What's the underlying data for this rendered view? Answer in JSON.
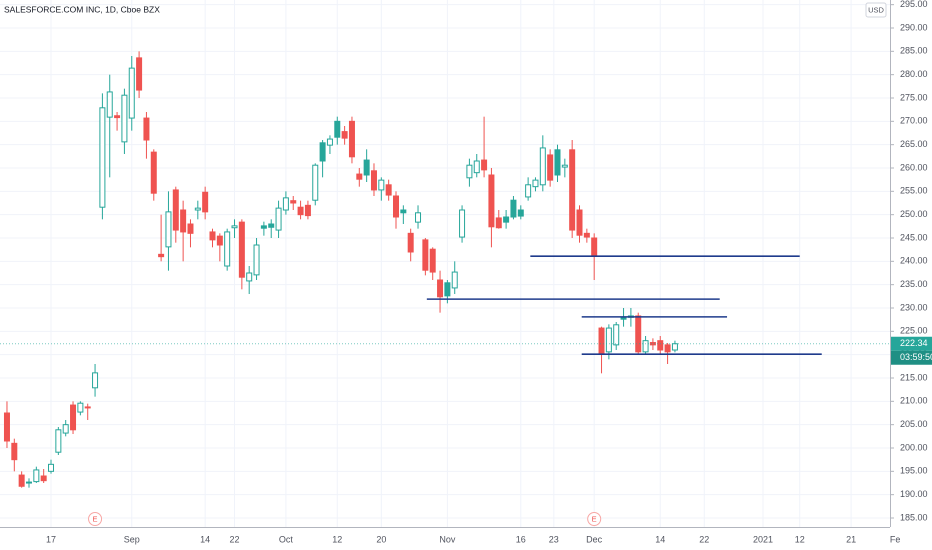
{
  "chart_data": {
    "type": "candlestick",
    "title": "SALESFORCE.COM INC, 1D, Cboe BZX",
    "currency": "USD",
    "countdown": "03:59:50",
    "up_color": "#26a69a",
    "down_color": "#ef5350",
    "level_color": "#1f3b8c",
    "open": [
      207.5,
      201,
      194.2,
      192.5,
      192.8,
      194,
      195,
      199.1,
      203.2,
      209.2,
      207.7,
      208.8,
      212.9,
      251.6,
      270.9,
      271.2,
      265.6,
      270.7,
      283.6,
      270.7,
      263.4,
      241.5,
      243.1,
      255.3,
      251,
      248,
      251,
      254.8,
      246.3,
      245.4,
      239,
      247.2,
      248.4,
      235.8,
      237.1,
      247.6,
      248,
      246.7,
      251,
      253,
      251.6,
      252,
      253.1,
      265.4,
      264.9,
      270,
      267.8,
      270,
      258.7,
      261.7,
      259.4,
      255.3,
      256.4,
      254,
      251,
      246,
      248.4,
      244.6,
      242.6,
      236,
      235.4,
      234.3,
      245.2,
      257.9,
      259,
      261.7,
      258.5,
      249.3,
      249.5,
      253.1,
      251,
      253.8,
      256,
      256.4,
      262.8,
      263.9,
      260.2,
      263.9,
      251,
      246,
      245,
      225.7,
      220.6,
      222.1,
      227.9,
      228,
      228.3,
      220.6,
      222.6,
      223,
      222.1,
      221
    ],
    "high": [
      210,
      202,
      195,
      193.5,
      196,
      195.5,
      197.5,
      204.5,
      206,
      210,
      210,
      209.5,
      218,
      276,
      280,
      272,
      277,
      284,
      285,
      272,
      264,
      250,
      255,
      256,
      253,
      249,
      253,
      256,
      247,
      246,
      247,
      249,
      249,
      239,
      245,
      248.5,
      249,
      253,
      255,
      254,
      253,
      253,
      261,
      266,
      267,
      271,
      269,
      271,
      260,
      264,
      261,
      258,
      257.5,
      255,
      252,
      247,
      252,
      245,
      243,
      238,
      236,
      240,
      252,
      262,
      263,
      271,
      260,
      251,
      251,
      254,
      252,
      258,
      258,
      267,
      264,
      265,
      262,
      266,
      252,
      247,
      246,
      226,
      226.5,
      227,
      230,
      230,
      229,
      224,
      223.5,
      224,
      222.5,
      223
    ],
    "low": [
      200,
      195,
      191.5,
      191.5,
      192.5,
      192.5,
      194.5,
      198.5,
      202.5,
      203,
      207,
      206,
      211,
      249,
      258,
      268,
      263,
      268,
      275,
      262,
      253,
      240,
      238,
      244,
      240,
      243,
      249,
      249,
      243,
      240,
      238,
      245,
      234,
      233,
      236,
      245.5,
      245,
      245,
      250,
      251,
      249,
      249,
      252,
      258,
      263,
      265,
      265,
      261,
      256,
      257,
      254,
      253,
      253,
      247,
      248,
      240,
      247,
      237,
      236,
      229,
      231,
      233,
      244,
      256,
      258,
      258,
      243,
      247,
      247,
      249,
      249,
      253,
      255,
      255,
      256,
      257,
      258,
      245,
      244,
      244,
      236,
      216,
      219,
      221,
      226,
      226,
      220,
      220,
      221,
      220,
      218,
      220.5
    ],
    "close": [
      201.5,
      197.5,
      191.8,
      192.7,
      195.3,
      193,
      196.5,
      203.9,
      205,
      203.9,
      209.6,
      208.6,
      216.1,
      272.9,
      276.3,
      270.8,
      275.6,
      281.4,
      276.7,
      266,
      254.6,
      241,
      250.6,
      246.7,
      246.3,
      246,
      251.4,
      250.6,
      244.6,
      243.5,
      246.3,
      247.6,
      236.6,
      237.5,
      243.5,
      247.1,
      247.3,
      251.4,
      253.6,
      252.5,
      250,
      249.8,
      260.6,
      261.5,
      266.2,
      266.6,
      266.4,
      262.4,
      257.6,
      258.5,
      255.3,
      257.4,
      254.2,
      249.5,
      250.4,
      242,
      250.4,
      238.1,
      237.7,
      232.4,
      232.6,
      237.7,
      251,
      260.6,
      261.5,
      259.6,
      247.4,
      247.2,
      248.4,
      249.5,
      249.7,
      256.4,
      257.4,
      264.3,
      257.4,
      258.5,
      260.6,
      246.7,
      245.6,
      245.2,
      241.1,
      220.1,
      225.7,
      226.4,
      227.6,
      228.3,
      220.6,
      223,
      222.1,
      221,
      220.6,
      222.34
    ],
    "xlim": [
      -0.95,
      120.3
    ],
    "xticks": [
      {
        "value": 6,
        "label": "17"
      },
      {
        "value": 17,
        "label": "Sep"
      },
      {
        "value": 27,
        "label": "14"
      },
      {
        "value": 31,
        "label": "22"
      },
      {
        "value": 38,
        "label": "Oct"
      },
      {
        "value": 45,
        "label": "12"
      },
      {
        "value": 51,
        "label": "20"
      },
      {
        "value": 60,
        "label": "Nov"
      },
      {
        "value": 70,
        "label": "16"
      },
      {
        "value": 74.5,
        "label": "23"
      },
      {
        "value": 80,
        "label": "Dec"
      },
      {
        "value": 89,
        "label": "14"
      },
      {
        "value": 95,
        "label": "22"
      },
      {
        "value": 103,
        "label": "2021"
      },
      {
        "value": 108,
        "label": "12"
      },
      {
        "value": 115,
        "label": "21"
      },
      {
        "value": 121,
        "label": "Fe"
      }
    ],
    "ylim": [
      183.5,
      296
    ],
    "yticks": [
      {
        "value": 185,
        "label": "185.00"
      },
      {
        "value": 190,
        "label": "190.00"
      },
      {
        "value": 195,
        "label": "195.00"
      },
      {
        "value": 200,
        "label": "200.00"
      },
      {
        "value": 205,
        "label": "205.00"
      },
      {
        "value": 210,
        "label": "210.00"
      },
      {
        "value": 215,
        "label": "215.00"
      },
      {
        "value": 220,
        "label": "220.00"
      },
      {
        "value": 225,
        "label": "225.00"
      },
      {
        "value": 230,
        "label": "230.00"
      },
      {
        "value": 235,
        "label": "235.00"
      },
      {
        "value": 240,
        "label": "240.00"
      },
      {
        "value": 245,
        "label": "245.00"
      },
      {
        "value": 250,
        "label": "250.00"
      },
      {
        "value": 255,
        "label": "255.00"
      },
      {
        "value": 260,
        "label": "260.00"
      },
      {
        "value": 265,
        "label": "265.00"
      },
      {
        "value": 270,
        "label": "270.00"
      },
      {
        "value": 275,
        "label": "275.00"
      },
      {
        "value": 280,
        "label": "280.00"
      },
      {
        "value": 285,
        "label": "285.00"
      },
      {
        "value": 290,
        "label": "290.00"
      },
      {
        "value": 295,
        "label": "295.00"
      }
    ],
    "grid": true,
    "levels": [
      {
        "value": 241.1,
        "x": [
          71.3,
          108
        ]
      },
      {
        "value": 231.9,
        "x": [
          57.2,
          97.1
        ]
      },
      {
        "value": 228.1,
        "x": [
          78.3,
          98.1
        ]
      },
      {
        "value": 220.1,
        "x": [
          78.3,
          111
        ]
      }
    ],
    "events": [
      {
        "x": 12,
        "label": "E"
      },
      {
        "x": 80,
        "label": "E"
      }
    ]
  }
}
